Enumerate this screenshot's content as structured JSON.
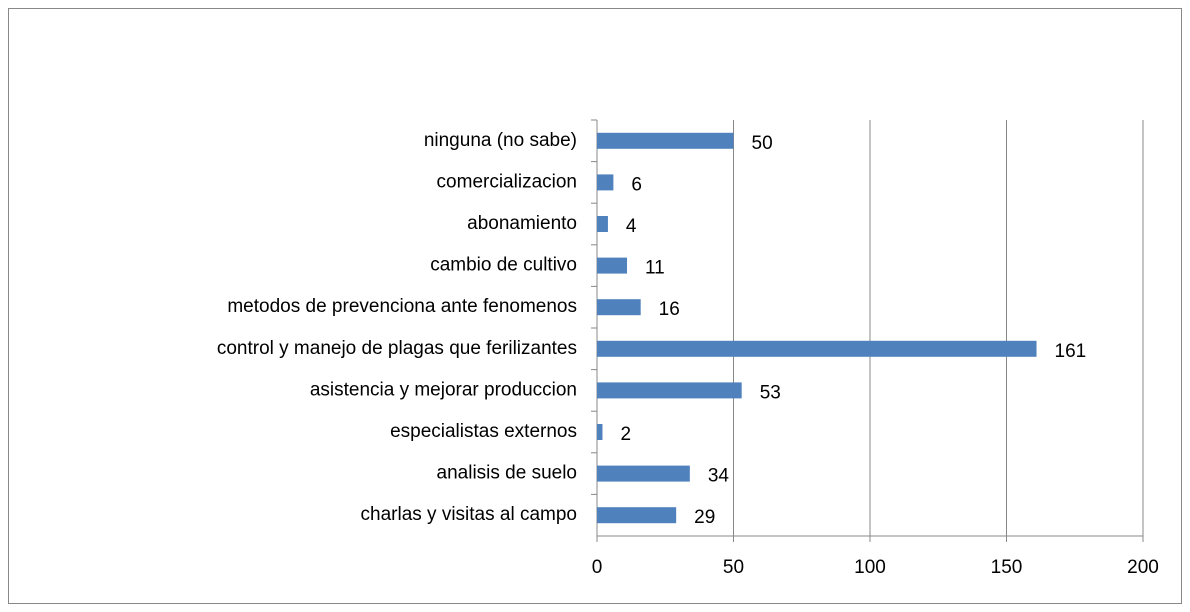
{
  "chart_data": {
    "type": "bar",
    "orientation": "horizontal",
    "categories": [
      "ninguna (no sabe)",
      "comercializacion",
      "abonamiento",
      "cambio de cultivo",
      "metodos de prevenciona ante fenomenos",
      "control y manejo de plagas que ferilizantes",
      "asistencia y mejorar produccion",
      "especialistas externos",
      "analisis de suelo",
      "charlas y visitas al campo"
    ],
    "values": [
      50,
      6,
      4,
      11,
      16,
      161,
      53,
      2,
      34,
      29
    ],
    "color": "#4f81bd",
    "xlim": [
      0,
      200
    ],
    "xticks": [
      0,
      50,
      100,
      150,
      200
    ],
    "grid": true
  }
}
